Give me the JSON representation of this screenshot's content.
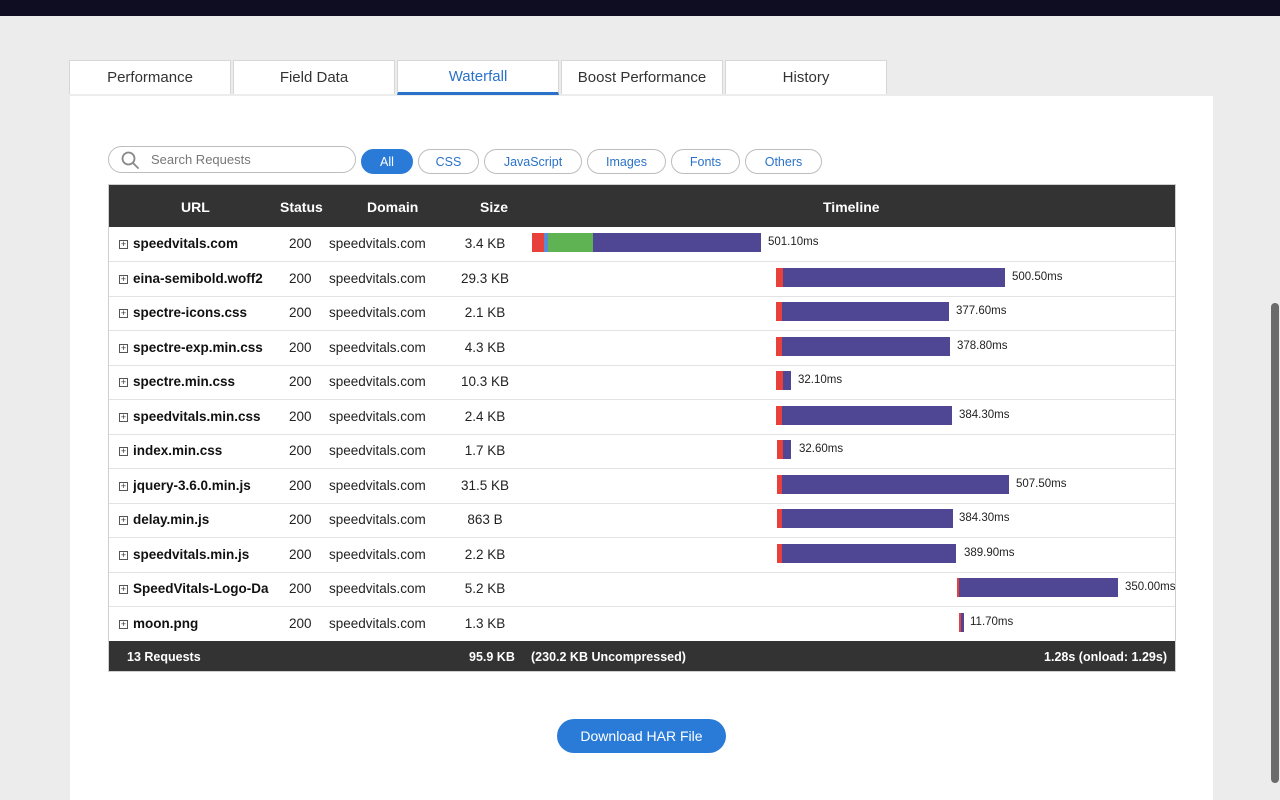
{
  "tabs": [
    {
      "label": "Performance",
      "active": false
    },
    {
      "label": "Field Data",
      "active": false
    },
    {
      "label": "Waterfall",
      "active": true
    },
    {
      "label": "Boost Performance",
      "active": false
    },
    {
      "label": "History",
      "active": false
    }
  ],
  "search": {
    "placeholder": "Search Requests",
    "icon": "search-icon"
  },
  "filters": [
    {
      "label": "All",
      "active": true
    },
    {
      "label": "CSS",
      "active": false
    },
    {
      "label": "JavaScript",
      "active": false
    },
    {
      "label": "Images",
      "active": false
    },
    {
      "label": "Fonts",
      "active": false
    },
    {
      "label": "Others",
      "active": false
    }
  ],
  "columns": {
    "url": "URL",
    "status": "Status",
    "domain": "Domain",
    "size": "Size",
    "timeline": "Timeline"
  },
  "requests": [
    {
      "url": "speedvitals.com",
      "status": "200",
      "domain": "speedvitals.com",
      "size": "3.4 KB",
      "duration": "501.10ms"
    },
    {
      "url": "eina-semibold.woff2",
      "status": "200",
      "domain": "speedvitals.com",
      "size": "29.3 KB",
      "duration": "500.50ms"
    },
    {
      "url": "spectre-icons.css",
      "status": "200",
      "domain": "speedvitals.com",
      "size": "2.1 KB",
      "duration": "377.60ms"
    },
    {
      "url": "spectre-exp.min.css",
      "status": "200",
      "domain": "speedvitals.com",
      "size": "4.3 KB",
      "duration": "378.80ms"
    },
    {
      "url": "spectre.min.css",
      "status": "200",
      "domain": "speedvitals.com",
      "size": "10.3 KB",
      "duration": "32.10ms"
    },
    {
      "url": "speedvitals.min.css",
      "status": "200",
      "domain": "speedvitals.com",
      "size": "2.4 KB",
      "duration": "384.30ms"
    },
    {
      "url": "index.min.css",
      "status": "200",
      "domain": "speedvitals.com",
      "size": "1.7 KB",
      "duration": "32.60ms"
    },
    {
      "url": "jquery-3.6.0.min.js",
      "status": "200",
      "domain": "speedvitals.com",
      "size": "31.5 KB",
      "duration": "507.50ms"
    },
    {
      "url": "delay.min.js",
      "status": "200",
      "domain": "speedvitals.com",
      "size": "863 B",
      "duration": "384.30ms"
    },
    {
      "url": "speedvitals.min.js",
      "status": "200",
      "domain": "speedvitals.com",
      "size": "2.2 KB",
      "duration": "389.90ms"
    },
    {
      "url": "SpeedVitals-Logo-Da",
      "status": "200",
      "domain": "speedvitals.com",
      "size": "5.2 KB",
      "duration": "350.00ms"
    },
    {
      "url": "moon.png",
      "status": "200",
      "domain": "speedvitals.com",
      "size": "1.3 KB",
      "duration": "11.70ms"
    }
  ],
  "footer": {
    "requests": "13 Requests",
    "size": "95.9 KB",
    "uncompressed": "(230.2 KB Uncompressed)",
    "total": "1.28s (onload: 1.29s)"
  },
  "download_label": "Download HAR File",
  "colors": {
    "accent": "#2a7bd8",
    "bar_main": "#4f4794",
    "bar_dns": "#e8403a",
    "bar_connect": "#5fb353",
    "bar_ssl": "#5b8ad6",
    "header_bg": "#333333"
  }
}
